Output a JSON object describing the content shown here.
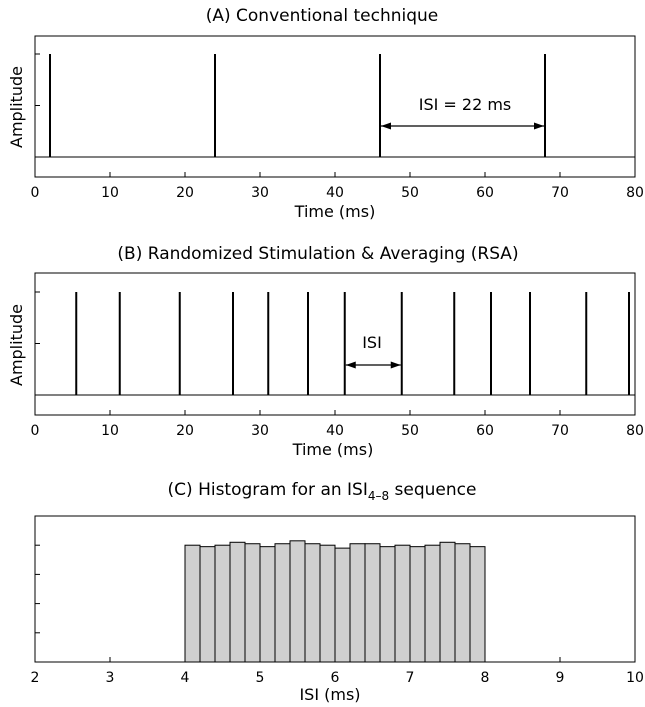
{
  "chart_data": [
    {
      "type": "line",
      "title": "(A) Conventional technique",
      "xlabel": "Time (ms)",
      "ylabel": "Amplitude",
      "xlim": [
        0,
        80
      ],
      "xticks": [
        0,
        10,
        20,
        30,
        40,
        50,
        60,
        70,
        80
      ],
      "grid": false,
      "spike_times": [
        2,
        24,
        46,
        68
      ],
      "annotation": {
        "text": "ISI = 22 ms",
        "from": 46,
        "to": 68
      }
    },
    {
      "type": "line",
      "title": "(B) Randomized Stimulation & Averaging (RSA)",
      "xlabel": "Time (ms)",
      "ylabel": "Amplitude",
      "xlim": [
        0,
        80
      ],
      "xticks": [
        0,
        10,
        20,
        30,
        40,
        50,
        60,
        70,
        80
      ],
      "grid": false,
      "spike_times": [
        5.5,
        11.3,
        19.3,
        26.4,
        31.1,
        36.4,
        41.3,
        48.9,
        55.9,
        60.8,
        66.0,
        73.5,
        79.2
      ],
      "annotation": {
        "text": "ISI",
        "from": 41.3,
        "to": 48.9
      }
    },
    {
      "type": "bar",
      "title_prefix": "(C) Histogram for an ISI",
      "title_sub": "4–8",
      "title_suffix": " sequence",
      "xlabel": "ISI (ms)",
      "xlim": [
        2,
        10
      ],
      "xticks": [
        2,
        3,
        4,
        5,
        6,
        7,
        8,
        9,
        10
      ],
      "grid": false,
      "bin_width": 0.2,
      "bin_starts": [
        4.0,
        4.2,
        4.4,
        4.6,
        4.8,
        5.0,
        5.2,
        5.4,
        5.6,
        5.8,
        6.0,
        6.2,
        6.4,
        6.6,
        6.8,
        7.0,
        7.2,
        7.4,
        7.6,
        7.8
      ],
      "values": [
        0.8,
        0.79,
        0.8,
        0.82,
        0.81,
        0.79,
        0.81,
        0.83,
        0.81,
        0.8,
        0.78,
        0.81,
        0.81,
        0.79,
        0.8,
        0.79,
        0.8,
        0.82,
        0.81,
        0.79
      ],
      "ylim": [
        0,
        1
      ],
      "bar_color": "#d0d0d0"
    }
  ]
}
